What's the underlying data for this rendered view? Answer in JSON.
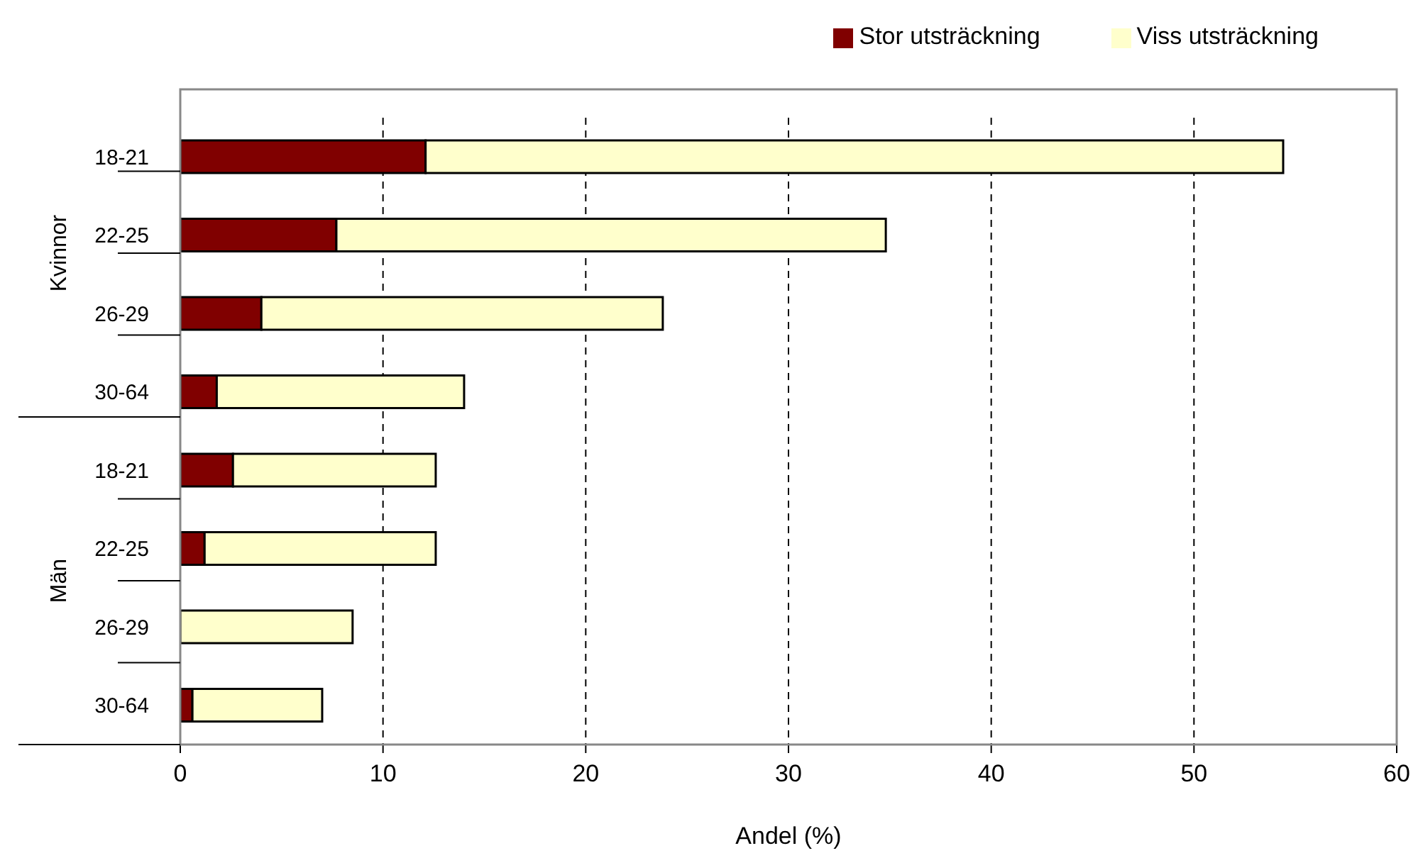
{
  "chart_data": {
    "type": "bar",
    "orientation": "horizontal",
    "stacked": true,
    "xlabel": "Andel (%)",
    "categories": [
      "18-21",
      "22-25",
      "26-29",
      "30-64",
      "18-21",
      "22-25",
      "26-29",
      "30-64"
    ],
    "annotations": [
      "Kvinnor",
      "Män"
    ],
    "series": [
      {
        "name": "Stor utsträckning",
        "color": "#800000",
        "values": [
          12.1,
          7.7,
          4.0,
          1.8,
          2.6,
          1.2,
          0,
          0.6
        ]
      },
      {
        "name": "Viss utsträckning",
        "color": "#ffffcc",
        "values": [
          42.3,
          27.1,
          19.8,
          12.2,
          10.0,
          11.4,
          8.5,
          6.4
        ]
      }
    ],
    "xlim": [
      0,
      60
    ],
    "xticks": [
      0,
      10,
      20,
      30,
      40,
      50,
      60
    ],
    "grid": "x",
    "legend": "top right"
  }
}
